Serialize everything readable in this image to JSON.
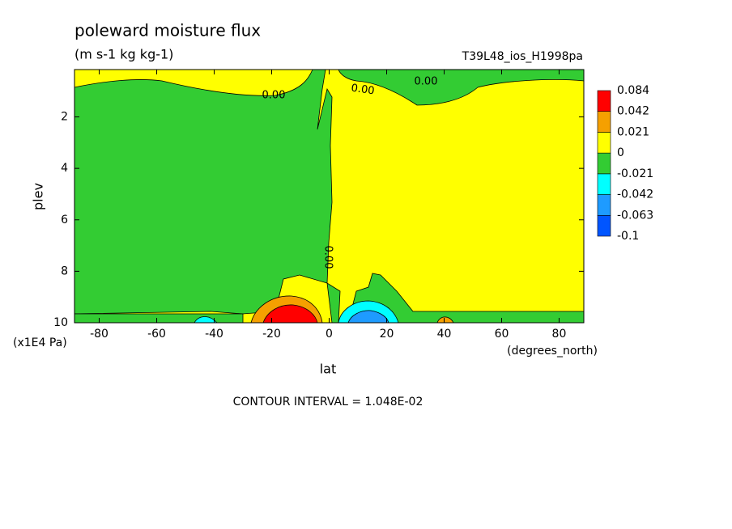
{
  "chart_data": {
    "type": "contour",
    "title": "poleward moisture flux",
    "subtitle": "(m s-1 kg kg-1)",
    "dataset": "T39L48_ios_H1998pa",
    "x_label": "lat",
    "y_label": "plev",
    "x_units": "(degrees_north)",
    "y_units": "(x1E4 Pa)",
    "xlim": [
      -88.6,
      88.6
    ],
    "ylim": [
      10,
      0.16
    ],
    "xticks": [
      -80,
      -60,
      -40,
      -20,
      0,
      20,
      40,
      60,
      80
    ],
    "yticks": [
      2,
      4,
      6,
      8,
      10
    ],
    "colorbar": {
      "levels": [
        -0.1,
        -0.063,
        -0.042,
        -0.021,
        0,
        0.021,
        0.042,
        0.084
      ],
      "colors": [
        "#0055ff",
        "#1e9bff",
        "#00ffff",
        "#33cc33",
        "#ffff00",
        "#f5a000",
        "#ff0000"
      ]
    },
    "contour_labels": [
      "0.00",
      "0.00",
      "0.00",
      "0.00"
    ],
    "note": "CONTOUR INTERVAL = 1.048E-02"
  }
}
